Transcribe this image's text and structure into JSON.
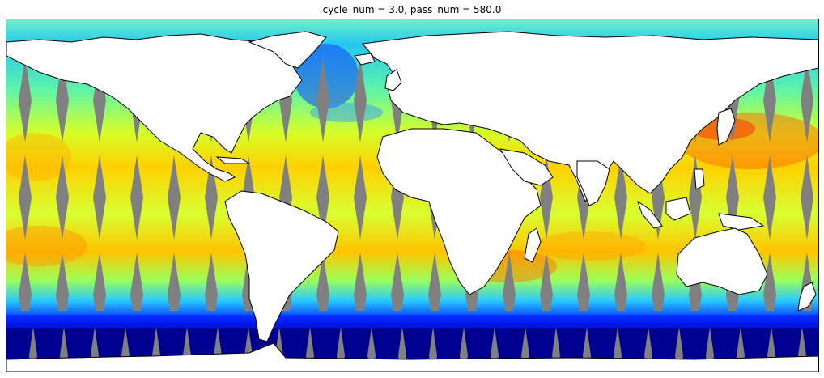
{
  "title": "cycle_num = 3.0, pass_num = 580.0",
  "map": {
    "projection": "Plate Carree",
    "extent": "global",
    "missing_color": "#808080",
    "land_color": "#ffffff",
    "coastline_color": "#000000",
    "colormap": "jet",
    "colormap_stops": [
      "#00008b",
      "#0000ff",
      "#00bfff",
      "#4cf2b8",
      "#c8ff30",
      "#ffe600",
      "#ffa000",
      "#ff3000"
    ]
  }
}
